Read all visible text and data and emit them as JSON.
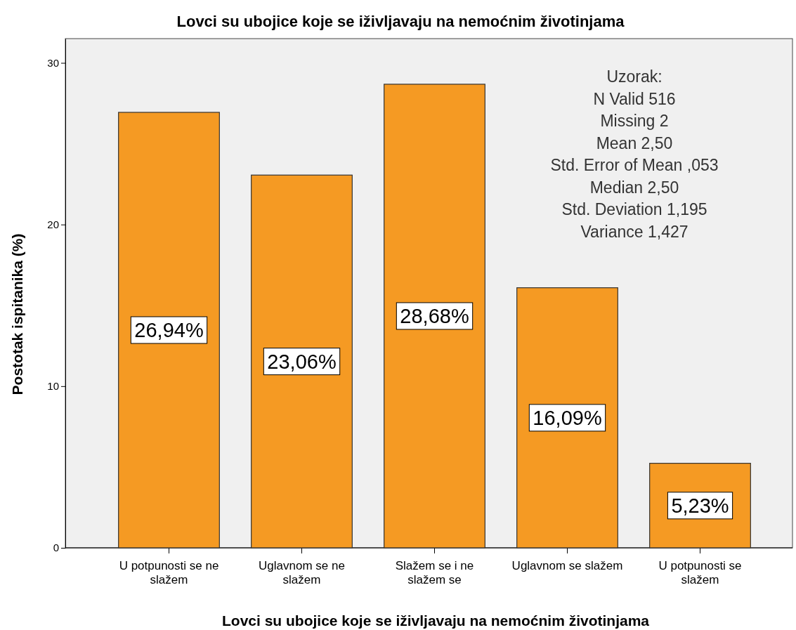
{
  "chart_data": {
    "type": "bar",
    "title": "Lovci su ubojice koje se iživljavaju na nemoćnim životinjama",
    "xlabel": "Lovci su ubojice koje se iživljavaju na nemoćnim životinjama",
    "ylabel": "Postotak ispitanika (%)",
    "categories": [
      "U potpunosti se ne slažem",
      "Uglavnom se ne slažem",
      "Slažem se i ne slažem se",
      "Uglavnom se slažem",
      "U potpunosti se slažem"
    ],
    "values": [
      26.94,
      23.06,
      28.68,
      16.09,
      5.23
    ],
    "value_labels": [
      "26,94%",
      "23,06%",
      "28,68%",
      "16,09%",
      "5,23%"
    ],
    "color": "#f59a23",
    "ylim": [
      0,
      31.5
    ],
    "yticks": [
      0,
      10,
      20,
      30
    ],
    "grid": false,
    "annotations": [
      "Uzorak:",
      "N  Valid  516",
      "Missing  2",
      "Mean  2,50",
      "Std. Error of Mean  ,053",
      "Median  2,50",
      "Std. Deviation  1,195",
      "Variance  1,427"
    ]
  }
}
